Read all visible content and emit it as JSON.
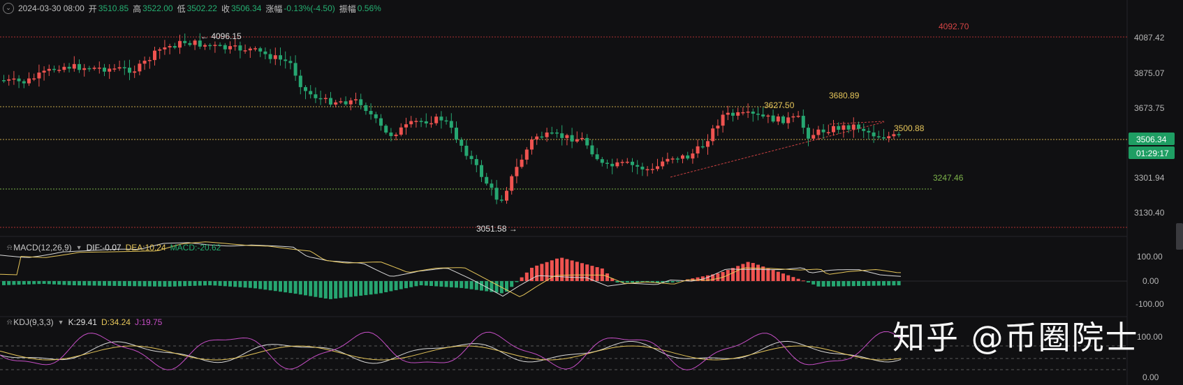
{
  "header": {
    "datetime": "2024-03-30 08:00",
    "open_label": "开",
    "open": "3510.85",
    "high_label": "高",
    "high": "3522.00",
    "low_label": "低",
    "low": "3502.22",
    "close_label": "收",
    "close": "3506.34",
    "change_label": "涨幅",
    "change": "-0.13%(-4.50)",
    "amplitude_label": "振幅",
    "amplitude": "0.56%"
  },
  "price_axis": {
    "ticks": [
      "4087.42",
      "3875.07",
      "3673.75",
      "3301.94",
      "3130.40"
    ],
    "current_price": "3506.34",
    "countdown": "01:29:17"
  },
  "annotations": {
    "level_4092": "4092.70",
    "high_4096": "← 4096.15",
    "level_3680": "3680.89",
    "level_3627": "3627.50",
    "level_3500": "3500.88",
    "level_3247": "3247.46",
    "low_3051": "3051.58 →"
  },
  "macd": {
    "name": "MACD(12,26,9)",
    "dif": "DIF:-0.07",
    "dea": "DEA:10.24",
    "macd": "MACD:-20.62",
    "ticks": [
      "100.00",
      "0.00",
      "-100.00"
    ]
  },
  "kdj": {
    "name": "KDJ(9,3,3)",
    "k": "K:29.41",
    "d": "D:34.24",
    "j": "J:19.75",
    "ticks": [
      "100.00",
      "0.00"
    ]
  },
  "watermark": "知乎 @币圈院士",
  "colors": {
    "up": "#ef5350",
    "down": "#26a671",
    "background": "#101012",
    "current_price_tag": "#1e9e63",
    "dea": "#e6c65a",
    "j_line": "#c64ec6"
  }
}
